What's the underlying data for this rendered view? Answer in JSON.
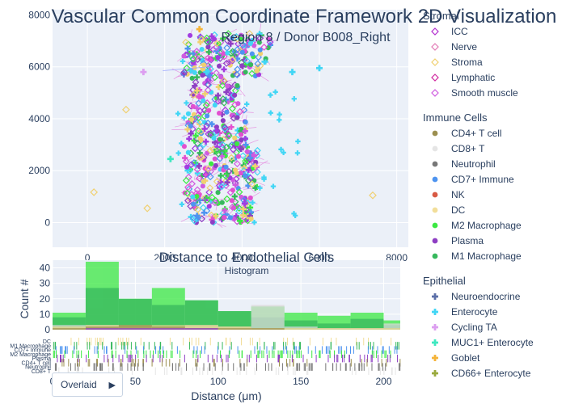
{
  "chart_data": [
    {
      "type": "scatter",
      "title": "Vascular Common Coordinate Framework 2D Visualization",
      "subtitle": "Region 8 / Donor B008_Right",
      "xlim": [
        -900,
        8300
      ],
      "ylim": [
        -950,
        8200
      ],
      "x_ticks": [
        0,
        2000,
        4000,
        6000,
        8000
      ],
      "y_ticks": [
        0,
        2000,
        4000,
        6000,
        8000
      ],
      "x_tick_labels": [
        "0",
        "2000",
        "4000",
        "6000",
        "8000"
      ],
      "y_tick_labels": [
        "0",
        "2000",
        "4000",
        "6000",
        "8000"
      ],
      "grid": true,
      "outliers": [
        {
          "x": 170,
          "y": 1170,
          "group": "Stroma"
        },
        {
          "x": 1000,
          "y": 4350,
          "group": "Stroma"
        },
        {
          "x": 1550,
          "y": 550,
          "group": "Stroma"
        },
        {
          "x": 1450,
          "y": 5800,
          "group": "Cycling TA"
        },
        {
          "x": 2150,
          "y": 2450,
          "group": "MUC1+ Enterocyte"
        },
        {
          "x": 7380,
          "y": 1050,
          "group": "Stroma"
        },
        {
          "x": 6000,
          "y": 5950,
          "group": "Enterocyte"
        },
        {
          "x": 5300,
          "y": 5800,
          "group": "Enterocyte"
        },
        {
          "x": 3080,
          "y": 5800,
          "group": "Enterocyte"
        },
        {
          "x": 2900,
          "y": 7450,
          "group": "Goblet"
        },
        {
          "x": 2950,
          "y": 7050,
          "group": "Stroma"
        }
      ]
    },
    {
      "type": "bar",
      "title": "Distance to Endothelial Cells",
      "subtitle": "Histogram",
      "xlabel": "Distance (μm)",
      "ylabel": "Count #",
      "xlim": [
        0,
        210
      ],
      "ylim": [
        0,
        45
      ],
      "x_ticks": [
        0,
        50,
        100,
        150,
        200
      ],
      "x_tick_labels": [
        "0",
        "50",
        "100",
        "150",
        "200"
      ],
      "y_ticks": [
        0,
        10,
        20,
        30,
        40
      ],
      "y_tick_labels": [
        "0",
        "10",
        "20",
        "30",
        "40"
      ],
      "bin_edges": [
        0,
        20,
        40,
        60,
        80,
        100,
        120,
        140,
        160,
        180,
        200,
        210
      ],
      "mode": "overlay",
      "series": [
        {
          "name": "M2 Macrophage",
          "color": "#3ce843",
          "values": [
            11,
            44,
            20,
            27,
            19,
            12,
            15,
            11,
            9,
            11,
            6
          ]
        },
        {
          "name": "M1 Macrophage",
          "color": "#37b85d",
          "values": [
            8,
            27,
            20,
            16,
            19,
            12,
            8,
            6,
            4,
            7,
            3
          ]
        },
        {
          "name": "CD8+ T",
          "color": "#d9d9d9",
          "values": [
            3,
            3,
            2,
            2,
            3,
            2,
            16,
            2,
            1,
            1,
            4
          ]
        },
        {
          "name": "DC",
          "color": "#e3d38a",
          "values": [
            2,
            3,
            3,
            3,
            3,
            2,
            1,
            1,
            1,
            1,
            1
          ]
        },
        {
          "name": "CD4+ T cell",
          "color": "#9c8f4f",
          "values": [
            1,
            2,
            3,
            2,
            1,
            1,
            1,
            0,
            0,
            0,
            0
          ]
        },
        {
          "name": "Plasma",
          "color": "#8e3fc3",
          "values": [
            0,
            1,
            1,
            1,
            1,
            0,
            0,
            0,
            0,
            0,
            0
          ]
        }
      ]
    },
    {
      "type": "scatter",
      "title": "",
      "rug_rows": [
        "DC",
        "M1 Macrophage",
        "CD7+ Immune",
        "M2 Macrophage",
        "Plasma",
        "CD4+ T cell",
        "Neutrophil",
        "CD8+ T"
      ]
    }
  ],
  "legend": {
    "groups": [
      {
        "title": "Stromal",
        "items": [
          {
            "label": "ICC",
            "symbol": "diamond-open",
            "color": "#b32fcf"
          },
          {
            "label": "Nerve",
            "symbol": "diamond-open",
            "color": "#e37bb6"
          },
          {
            "label": "Stroma",
            "symbol": "diamond-open",
            "color": "#f0d070"
          },
          {
            "label": "Lymphatic",
            "symbol": "diamond-open",
            "color": "#d12aa0"
          },
          {
            "label": "Smooth muscle",
            "symbol": "diamond-open",
            "color": "#cf5be0"
          }
        ]
      },
      {
        "title": "Immune Cells",
        "items": [
          {
            "label": "CD4+ T cell",
            "symbol": "circle",
            "color": "#9c8f4f"
          },
          {
            "label": "CD8+ T",
            "symbol": "circle",
            "color": "#e5e5e5"
          },
          {
            "label": "Neutrophil",
            "symbol": "circle",
            "color": "#777777"
          },
          {
            "label": "CD7+ Immune",
            "symbol": "circle",
            "color": "#4e94f0"
          },
          {
            "label": "NK",
            "symbol": "circle",
            "color": "#d85a44"
          },
          {
            "label": "DC",
            "symbol": "circle",
            "color": "#f2de9a"
          },
          {
            "label": "M2 Macrophage",
            "symbol": "circle",
            "color": "#3ce843"
          },
          {
            "label": "Plasma",
            "symbol": "circle",
            "color": "#8e3fc3"
          },
          {
            "label": "M1 Macrophage",
            "symbol": "circle",
            "color": "#37b85d"
          }
        ]
      },
      {
        "title": "Epithelial",
        "items": [
          {
            "label": "Neuroendocrine",
            "symbol": "cross",
            "color": "#5b6fa8"
          },
          {
            "label": "Enterocyte",
            "symbol": "cross",
            "color": "#42d6f5"
          },
          {
            "label": "Cycling TA",
            "symbol": "cross",
            "color": "#dc9ef0"
          },
          {
            "label": "MUC1+ Enterocyte",
            "symbol": "cross",
            "color": "#3fe8c0"
          },
          {
            "label": "Goblet",
            "symbol": "cross",
            "color": "#f5b43a"
          },
          {
            "label": "CD66+ Enterocyte",
            "symbol": "cross",
            "color": "#9aaa3e"
          }
        ]
      }
    ]
  },
  "controls": {
    "mode_label": "Overlaid",
    "arrow": "▶"
  },
  "colors": {
    "plot_bg": "#ebf0f8",
    "grid": "#ffffff",
    "text": "#2a3f5f",
    "edge": "#e24fd0"
  }
}
